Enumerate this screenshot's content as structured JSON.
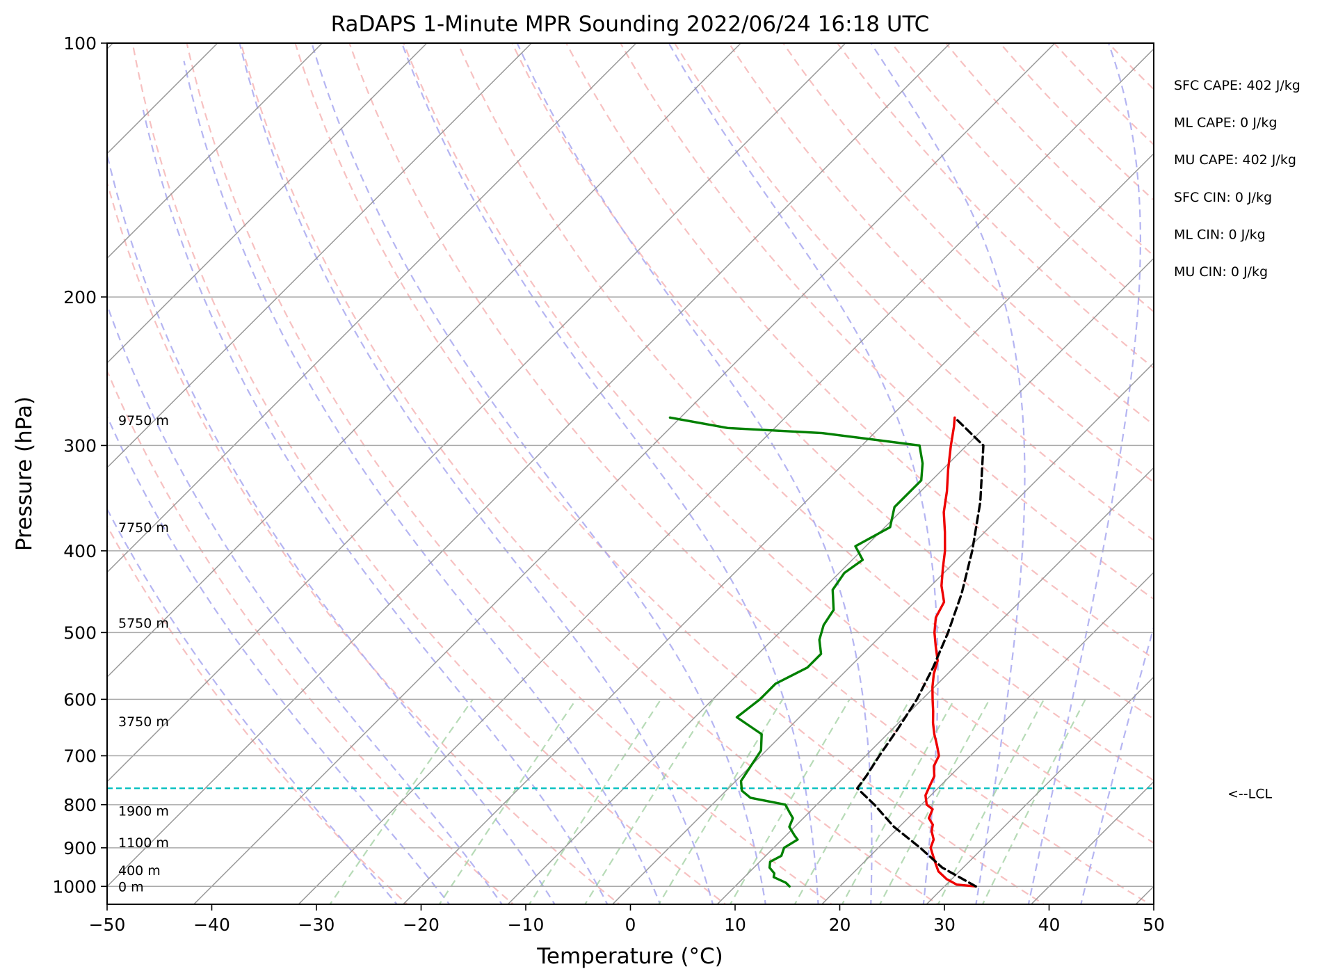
{
  "chart_data": {
    "type": "line",
    "subtype": "skew-t",
    "title": "RaDAPS 1-Minute MPR Sounding 2022/06/24 16:18 UTC",
    "xlabel": "Temperature (°C)",
    "ylabel": "Pressure (hPa)",
    "xlim": [
      -50,
      50
    ],
    "ylim": [
      1050,
      100
    ],
    "y_scale": "log",
    "grid": true,
    "x_ticks": [
      -50,
      -40,
      -30,
      -20,
      -10,
      0,
      10,
      20,
      30,
      40,
      50
    ],
    "x_tick_labels": [
      "−50",
      "−40",
      "−30",
      "−20",
      "−10",
      "0",
      "10",
      "20",
      "30",
      "40",
      "50"
    ],
    "y_ticks": [
      100,
      200,
      300,
      400,
      500,
      600,
      700,
      800,
      900,
      1000
    ],
    "y_tick_labels": [
      "100",
      "200",
      "300",
      "400",
      "500",
      "600",
      "700",
      "800",
      "900",
      "1000"
    ],
    "height_labels": [
      {
        "p": 280,
        "text": "9750 m"
      },
      {
        "p": 375,
        "text": "7750 m"
      },
      {
        "p": 487,
        "text": "5750 m"
      },
      {
        "p": 637,
        "text": "3750 m"
      },
      {
        "p": 813,
        "text": "1900 m"
      },
      {
        "p": 887,
        "text": "1100 m"
      },
      {
        "p": 957,
        "text": "400 m"
      },
      {
        "p": 1000,
        "text": "0 m"
      }
    ],
    "stats": [
      "SFC CAPE: 402 J/kg",
      "ML CAPE: 0 J/kg",
      "MU CAPE: 402 J/kg",
      "SFC CIN: 0 J/kg",
      "ML CIN: 0 J/kg",
      "MU CIN: 0 J/kg"
    ],
    "lcl": {
      "p": 765,
      "label": "<--LCL"
    },
    "colors": {
      "temperature": "#ee0000",
      "dewpoint": "#008000",
      "parcel": "#000000",
      "lcl": "#00bfbf",
      "dry_adiabat": "#f4a6a6",
      "moist_adiabat": "#a8a8f0",
      "mixing_ratio": "#9fcf9f",
      "isotherm": "#999999"
    },
    "series": [
      {
        "key": "temperature",
        "points": [
          [
            1000,
            33.0
          ],
          [
            995,
            31.0
          ],
          [
            980,
            29.5
          ],
          [
            960,
            28.0
          ],
          [
            940,
            27.0
          ],
          [
            920,
            26.0
          ],
          [
            900,
            25.0
          ],
          [
            880,
            24.5
          ],
          [
            860,
            23.5
          ],
          [
            845,
            23.0
          ],
          [
            830,
            22.0
          ],
          [
            810,
            21.5
          ],
          [
            800,
            20.5
          ],
          [
            780,
            19.5
          ],
          [
            760,
            19.0
          ],
          [
            740,
            18.5
          ],
          [
            720,
            17.5
          ],
          [
            700,
            17.0
          ],
          [
            680,
            15.8
          ],
          [
            660,
            14.5
          ],
          [
            640,
            13.3
          ],
          [
            620,
            12.2
          ],
          [
            600,
            11.0
          ],
          [
            580,
            9.8
          ],
          [
            560,
            8.7
          ],
          [
            540,
            7.8
          ],
          [
            520,
            6.3
          ],
          [
            500,
            4.8
          ],
          [
            480,
            3.5
          ],
          [
            460,
            2.8
          ],
          [
            440,
            1.0
          ],
          [
            420,
            -0.5
          ],
          [
            400,
            -2.0
          ],
          [
            380,
            -3.8
          ],
          [
            360,
            -5.8
          ],
          [
            340,
            -7.5
          ],
          [
            320,
            -9.5
          ],
          [
            300,
            -11.5
          ],
          [
            285,
            -13.0
          ],
          [
            278,
            -13.8
          ]
        ]
      },
      {
        "key": "dewpoint",
        "points": [
          [
            1000,
            15.2
          ],
          [
            990,
            14.5
          ],
          [
            975,
            12.8
          ],
          [
            965,
            12.5
          ],
          [
            950,
            11.5
          ],
          [
            935,
            11.0
          ],
          [
            920,
            11.5
          ],
          [
            900,
            11.0
          ],
          [
            880,
            11.5
          ],
          [
            870,
            10.8
          ],
          [
            850,
            9.5
          ],
          [
            830,
            9.0
          ],
          [
            815,
            8.0
          ],
          [
            800,
            7.0
          ],
          [
            785,
            3.0
          ],
          [
            770,
            1.5
          ],
          [
            750,
            0.5
          ],
          [
            720,
            0.0
          ],
          [
            690,
            -0.5
          ],
          [
            660,
            -2.0
          ],
          [
            630,
            -6.0
          ],
          [
            600,
            -5.5
          ],
          [
            575,
            -5.5
          ],
          [
            550,
            -4.0
          ],
          [
            530,
            -4.0
          ],
          [
            510,
            -5.5
          ],
          [
            490,
            -6.5
          ],
          [
            470,
            -7.0
          ],
          [
            445,
            -9.0
          ],
          [
            425,
            -9.5
          ],
          [
            410,
            -9.0
          ],
          [
            395,
            -11.0
          ],
          [
            375,
            -9.5
          ],
          [
            355,
            -11.0
          ],
          [
            330,
            -11.0
          ],
          [
            315,
            -12.5
          ],
          [
            300,
            -14.5
          ],
          [
            290,
            -25.0
          ],
          [
            286,
            -34.5
          ],
          [
            278,
            -41.0
          ]
        ]
      },
      {
        "key": "parcel",
        "points": [
          [
            1000,
            33.0
          ],
          [
            950,
            28.0
          ],
          [
            900,
            24.0
          ],
          [
            850,
            19.5
          ],
          [
            800,
            15.5
          ],
          [
            765,
            12.3
          ],
          [
            740,
            12.0
          ],
          [
            700,
            11.3
          ],
          [
            650,
            10.5
          ],
          [
            600,
            9.5
          ],
          [
            550,
            8.0
          ],
          [
            500,
            6.1
          ],
          [
            450,
            3.7
          ],
          [
            400,
            0.6
          ],
          [
            350,
            -3.3
          ],
          [
            300,
            -8.4
          ],
          [
            278,
            -13.8
          ]
        ]
      }
    ]
  }
}
